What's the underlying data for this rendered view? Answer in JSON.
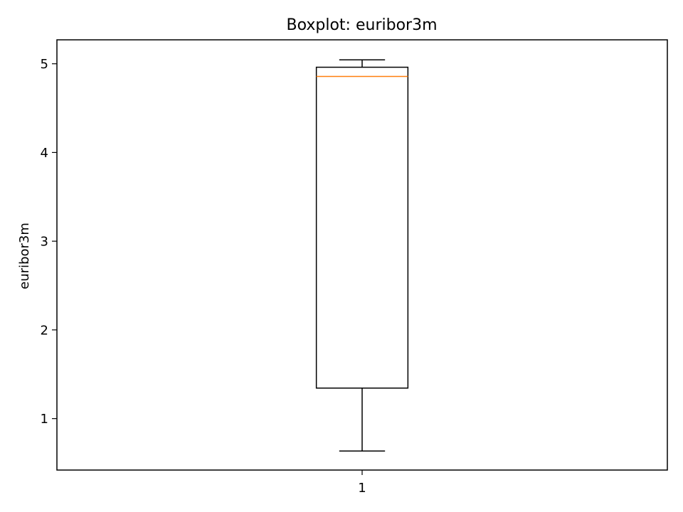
{
  "chart_data": {
    "type": "boxplot",
    "title": "Boxplot: euribor3m",
    "xlabel": "",
    "ylabel": "euribor3m",
    "ylim": [
      0.42,
      5.27
    ],
    "y_ticks": [
      1,
      2,
      3,
      4,
      5
    ],
    "x_ticks": [
      "1"
    ],
    "grid": false,
    "boxes": [
      {
        "position": "1",
        "whisker_low": 0.634,
        "q1": 1.344,
        "median": 4.857,
        "q3": 4.961,
        "whisker_high": 5.045
      }
    ],
    "colors": {
      "median": "#ff7f0e",
      "box": "#000000",
      "axes": "#000000"
    }
  }
}
